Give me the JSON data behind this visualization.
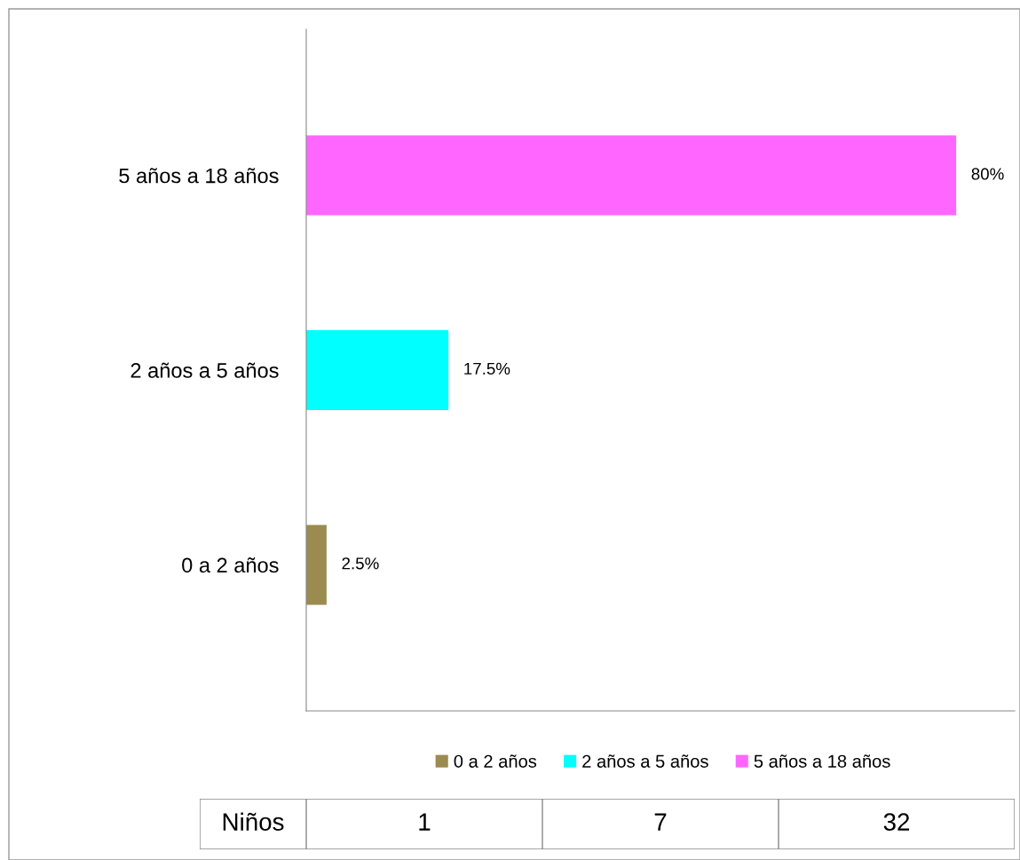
{
  "chart_data": {
    "type": "bar",
    "orientation": "horizontal",
    "categories": [
      "5 años a 18 años",
      "2 años a 5 años",
      "0 a 2 años"
    ],
    "series": [
      {
        "name": "0 a 2 años",
        "color": "#9b8b50",
        "values": [
          null,
          null,
          2.5
        ],
        "value_labels": [
          null,
          null,
          "2.5%"
        ]
      },
      {
        "name": "2 años a 5 años",
        "color": "#00ffff",
        "values": [
          null,
          17.5,
          null
        ],
        "value_labels": [
          null,
          "17.5%",
          null
        ]
      },
      {
        "name": "5 años a 18 años",
        "color": "#ff66ff",
        "values": [
          80,
          null,
          null
        ],
        "value_labels": [
          "80%",
          null,
          null
        ]
      }
    ],
    "legend": "bottom",
    "annotations": [
      "Niños",
      "1",
      "7",
      "32"
    ]
  }
}
